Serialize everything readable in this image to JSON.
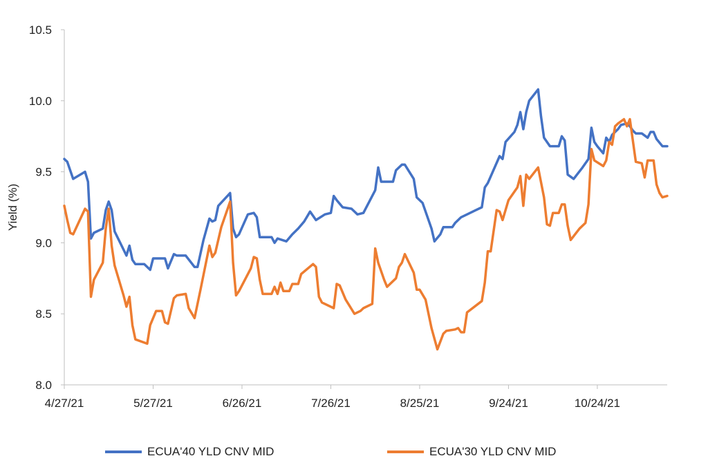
{
  "chart_data": {
    "type": "line",
    "title": "",
    "xlabel": "",
    "ylabel": "Yield (%)",
    "x_unit": "days since 4/27/21",
    "xlim": [
      0,
      203.6
    ],
    "ylim": [
      8.0,
      10.5
    ],
    "grid": false,
    "legend_position": "bottom",
    "y_ticks": [
      {
        "value": 8.0,
        "label": "8.0"
      },
      {
        "value": 8.5,
        "label": "8.5"
      },
      {
        "value": 9.0,
        "label": "9.0"
      },
      {
        "value": 9.5,
        "label": "9.5"
      },
      {
        "value": 10.0,
        "label": "10.0"
      },
      {
        "value": 10.5,
        "label": "10.5"
      }
    ],
    "x_ticks": [
      {
        "value": 0,
        "label": "4/27/21"
      },
      {
        "value": 30,
        "label": "5/27/21"
      },
      {
        "value": 60,
        "label": "6/26/21"
      },
      {
        "value": 90,
        "label": "7/26/21"
      },
      {
        "value": 120,
        "label": "8/25/21"
      },
      {
        "value": 150,
        "label": "9/24/21"
      },
      {
        "value": 180,
        "label": "10/24/21"
      }
    ],
    "series": [
      {
        "name": "ECUA'40 YLD CNV MID",
        "color": "#4472C4",
        "points": [
          [
            0,
            9.59
          ],
          [
            1,
            9.57
          ],
          [
            3,
            9.45
          ],
          [
            7,
            9.5
          ],
          [
            8,
            9.43
          ],
          [
            9,
            9.03
          ],
          [
            10,
            9.07
          ],
          [
            13,
            9.1
          ],
          [
            14,
            9.23
          ],
          [
            15,
            9.29
          ],
          [
            16,
            9.23
          ],
          [
            17,
            9.08
          ],
          [
            21,
            8.91
          ],
          [
            22,
            8.98
          ],
          [
            23,
            8.88
          ],
          [
            24,
            8.85
          ],
          [
            27,
            8.85
          ],
          [
            29,
            8.81
          ],
          [
            30,
            8.89
          ],
          [
            34,
            8.89
          ],
          [
            35,
            8.82
          ],
          [
            37,
            8.92
          ],
          [
            38,
            8.91
          ],
          [
            41,
            8.91
          ],
          [
            44,
            8.83
          ],
          [
            45,
            8.83
          ],
          [
            47,
            9.02
          ],
          [
            49,
            9.17
          ],
          [
            50,
            9.15
          ],
          [
            51,
            9.16
          ],
          [
            52,
            9.26
          ],
          [
            56,
            9.35
          ],
          [
            57,
            9.1
          ],
          [
            58,
            9.04
          ],
          [
            59,
            9.06
          ],
          [
            62,
            9.2
          ],
          [
            64,
            9.21
          ],
          [
            65,
            9.18
          ],
          [
            66,
            9.04
          ],
          [
            70,
            9.04
          ],
          [
            71,
            9.0
          ],
          [
            72,
            9.03
          ],
          [
            75,
            9.01
          ],
          [
            77,
            9.06
          ],
          [
            79,
            9.1
          ],
          [
            81,
            9.15
          ],
          [
            83,
            9.22
          ],
          [
            85,
            9.16
          ],
          [
            88,
            9.2
          ],
          [
            90,
            9.21
          ],
          [
            91,
            9.33
          ],
          [
            92,
            9.3
          ],
          [
            94,
            9.25
          ],
          [
            97,
            9.24
          ],
          [
            99,
            9.2
          ],
          [
            101,
            9.21
          ],
          [
            105,
            9.37
          ],
          [
            106,
            9.53
          ],
          [
            107,
            9.43
          ],
          [
            111,
            9.43
          ],
          [
            112,
            9.51
          ],
          [
            114,
            9.55
          ],
          [
            115,
            9.55
          ],
          [
            118,
            9.45
          ],
          [
            119,
            9.32
          ],
          [
            121,
            9.28
          ],
          [
            124,
            9.1
          ],
          [
            125,
            9.01
          ],
          [
            127,
            9.06
          ],
          [
            128,
            9.11
          ],
          [
            131,
            9.11
          ],
          [
            132,
            9.14
          ],
          [
            134,
            9.18
          ],
          [
            136,
            9.2
          ],
          [
            139,
            9.23
          ],
          [
            141,
            9.25
          ],
          [
            142,
            9.39
          ],
          [
            143,
            9.42
          ],
          [
            147,
            9.61
          ],
          [
            148,
            9.59
          ],
          [
            149,
            9.71
          ],
          [
            152,
            9.78
          ],
          [
            153,
            9.83
          ],
          [
            154,
            9.92
          ],
          [
            155,
            9.8
          ],
          [
            156,
            9.92
          ],
          [
            157,
            10.0
          ],
          [
            160,
            10.08
          ],
          [
            161,
            9.89
          ],
          [
            162,
            9.74
          ],
          [
            164,
            9.68
          ],
          [
            167,
            9.68
          ],
          [
            168,
            9.75
          ],
          [
            169,
            9.72
          ],
          [
            170,
            9.48
          ],
          [
            172,
            9.45
          ],
          [
            175,
            9.53
          ],
          [
            177,
            9.59
          ],
          [
            178,
            9.81
          ],
          [
            179,
            9.71
          ],
          [
            180,
            9.68
          ],
          [
            182,
            9.63
          ],
          [
            183,
            9.74
          ],
          [
            184,
            9.71
          ],
          [
            185,
            9.76
          ],
          [
            187,
            9.8
          ],
          [
            188,
            9.83
          ],
          [
            190,
            9.84
          ],
          [
            191,
            9.82
          ],
          [
            192,
            9.79
          ],
          [
            193,
            9.77
          ],
          [
            195,
            9.77
          ],
          [
            197,
            9.74
          ],
          [
            198,
            9.78
          ],
          [
            199,
            9.78
          ],
          [
            200,
            9.73
          ],
          [
            202,
            9.68
          ],
          [
            203.6,
            9.68
          ]
        ]
      },
      {
        "name": "ECUA'30 YLD CNV MID",
        "color": "#ED7D31",
        "points": [
          [
            0,
            9.26
          ],
          [
            1,
            9.16
          ],
          [
            2,
            9.07
          ],
          [
            3,
            9.06
          ],
          [
            7,
            9.24
          ],
          [
            8,
            9.22
          ],
          [
            9,
            8.62
          ],
          [
            10,
            8.74
          ],
          [
            13,
            8.86
          ],
          [
            14,
            9.1
          ],
          [
            15,
            9.24
          ],
          [
            16,
            8.98
          ],
          [
            17,
            8.84
          ],
          [
            20,
            8.63
          ],
          [
            21,
            8.55
          ],
          [
            22,
            8.62
          ],
          [
            23,
            8.42
          ],
          [
            24,
            8.32
          ],
          [
            28,
            8.29
          ],
          [
            29,
            8.42
          ],
          [
            31,
            8.52
          ],
          [
            33,
            8.52
          ],
          [
            34,
            8.44
          ],
          [
            35,
            8.43
          ],
          [
            37,
            8.61
          ],
          [
            38,
            8.63
          ],
          [
            41,
            8.64
          ],
          [
            42,
            8.54
          ],
          [
            44,
            8.47
          ],
          [
            46,
            8.67
          ],
          [
            49,
            8.98
          ],
          [
            50,
            8.9
          ],
          [
            51,
            8.93
          ],
          [
            53,
            9.11
          ],
          [
            56,
            9.29
          ],
          [
            57,
            8.86
          ],
          [
            58,
            8.63
          ],
          [
            59,
            8.66
          ],
          [
            63,
            8.82
          ],
          [
            64,
            8.9
          ],
          [
            65,
            8.89
          ],
          [
            66,
            8.74
          ],
          [
            67,
            8.64
          ],
          [
            70,
            8.64
          ],
          [
            71,
            8.69
          ],
          [
            72,
            8.64
          ],
          [
            73,
            8.72
          ],
          [
            74,
            8.66
          ],
          [
            76,
            8.66
          ],
          [
            77,
            8.71
          ],
          [
            79,
            8.71
          ],
          [
            80,
            8.78
          ],
          [
            84,
            8.85
          ],
          [
            85,
            8.83
          ],
          [
            86,
            8.62
          ],
          [
            87,
            8.58
          ],
          [
            91,
            8.54
          ],
          [
            92,
            8.71
          ],
          [
            93,
            8.7
          ],
          [
            95,
            8.6
          ],
          [
            98,
            8.5
          ],
          [
            100,
            8.52
          ],
          [
            101,
            8.54
          ],
          [
            104,
            8.57
          ],
          [
            105,
            8.96
          ],
          [
            106,
            8.86
          ],
          [
            108,
            8.74
          ],
          [
            109,
            8.69
          ],
          [
            112,
            8.75
          ],
          [
            113,
            8.83
          ],
          [
            114,
            8.86
          ],
          [
            115,
            8.92
          ],
          [
            118,
            8.79
          ],
          [
            119,
            8.67
          ],
          [
            120,
            8.67
          ],
          [
            122,
            8.6
          ],
          [
            124,
            8.4
          ],
          [
            126,
            8.25
          ],
          [
            128,
            8.36
          ],
          [
            129,
            8.38
          ],
          [
            132,
            8.39
          ],
          [
            133,
            8.4
          ],
          [
            134,
            8.37
          ],
          [
            135,
            8.37
          ],
          [
            136,
            8.51
          ],
          [
            141,
            8.59
          ],
          [
            142,
            8.72
          ],
          [
            143,
            8.94
          ],
          [
            144,
            8.94
          ],
          [
            146,
            9.23
          ],
          [
            147,
            9.22
          ],
          [
            148,
            9.16
          ],
          [
            150,
            9.3
          ],
          [
            153,
            9.39
          ],
          [
            154,
            9.47
          ],
          [
            155,
            9.26
          ],
          [
            156,
            9.48
          ],
          [
            157,
            9.45
          ],
          [
            160,
            9.53
          ],
          [
            162,
            9.32
          ],
          [
            163,
            9.13
          ],
          [
            164,
            9.12
          ],
          [
            165,
            9.21
          ],
          [
            167,
            9.21
          ],
          [
            168,
            9.27
          ],
          [
            169,
            9.27
          ],
          [
            170,
            9.12
          ],
          [
            171,
            9.02
          ],
          [
            174,
            9.1
          ],
          [
            176,
            9.14
          ],
          [
            177,
            9.27
          ],
          [
            178,
            9.66
          ],
          [
            179,
            9.58
          ],
          [
            182,
            9.54
          ],
          [
            183,
            9.58
          ],
          [
            184,
            9.71
          ],
          [
            185,
            9.69
          ],
          [
            186,
            9.82
          ],
          [
            187,
            9.84
          ],
          [
            189,
            9.87
          ],
          [
            190,
            9.82
          ],
          [
            191,
            9.87
          ],
          [
            193,
            9.57
          ],
          [
            195,
            9.56
          ],
          [
            196,
            9.46
          ],
          [
            197,
            9.58
          ],
          [
            199,
            9.58
          ],
          [
            200,
            9.41
          ],
          [
            201,
            9.35
          ],
          [
            202,
            9.32
          ],
          [
            203.6,
            9.33
          ]
        ]
      }
    ]
  }
}
